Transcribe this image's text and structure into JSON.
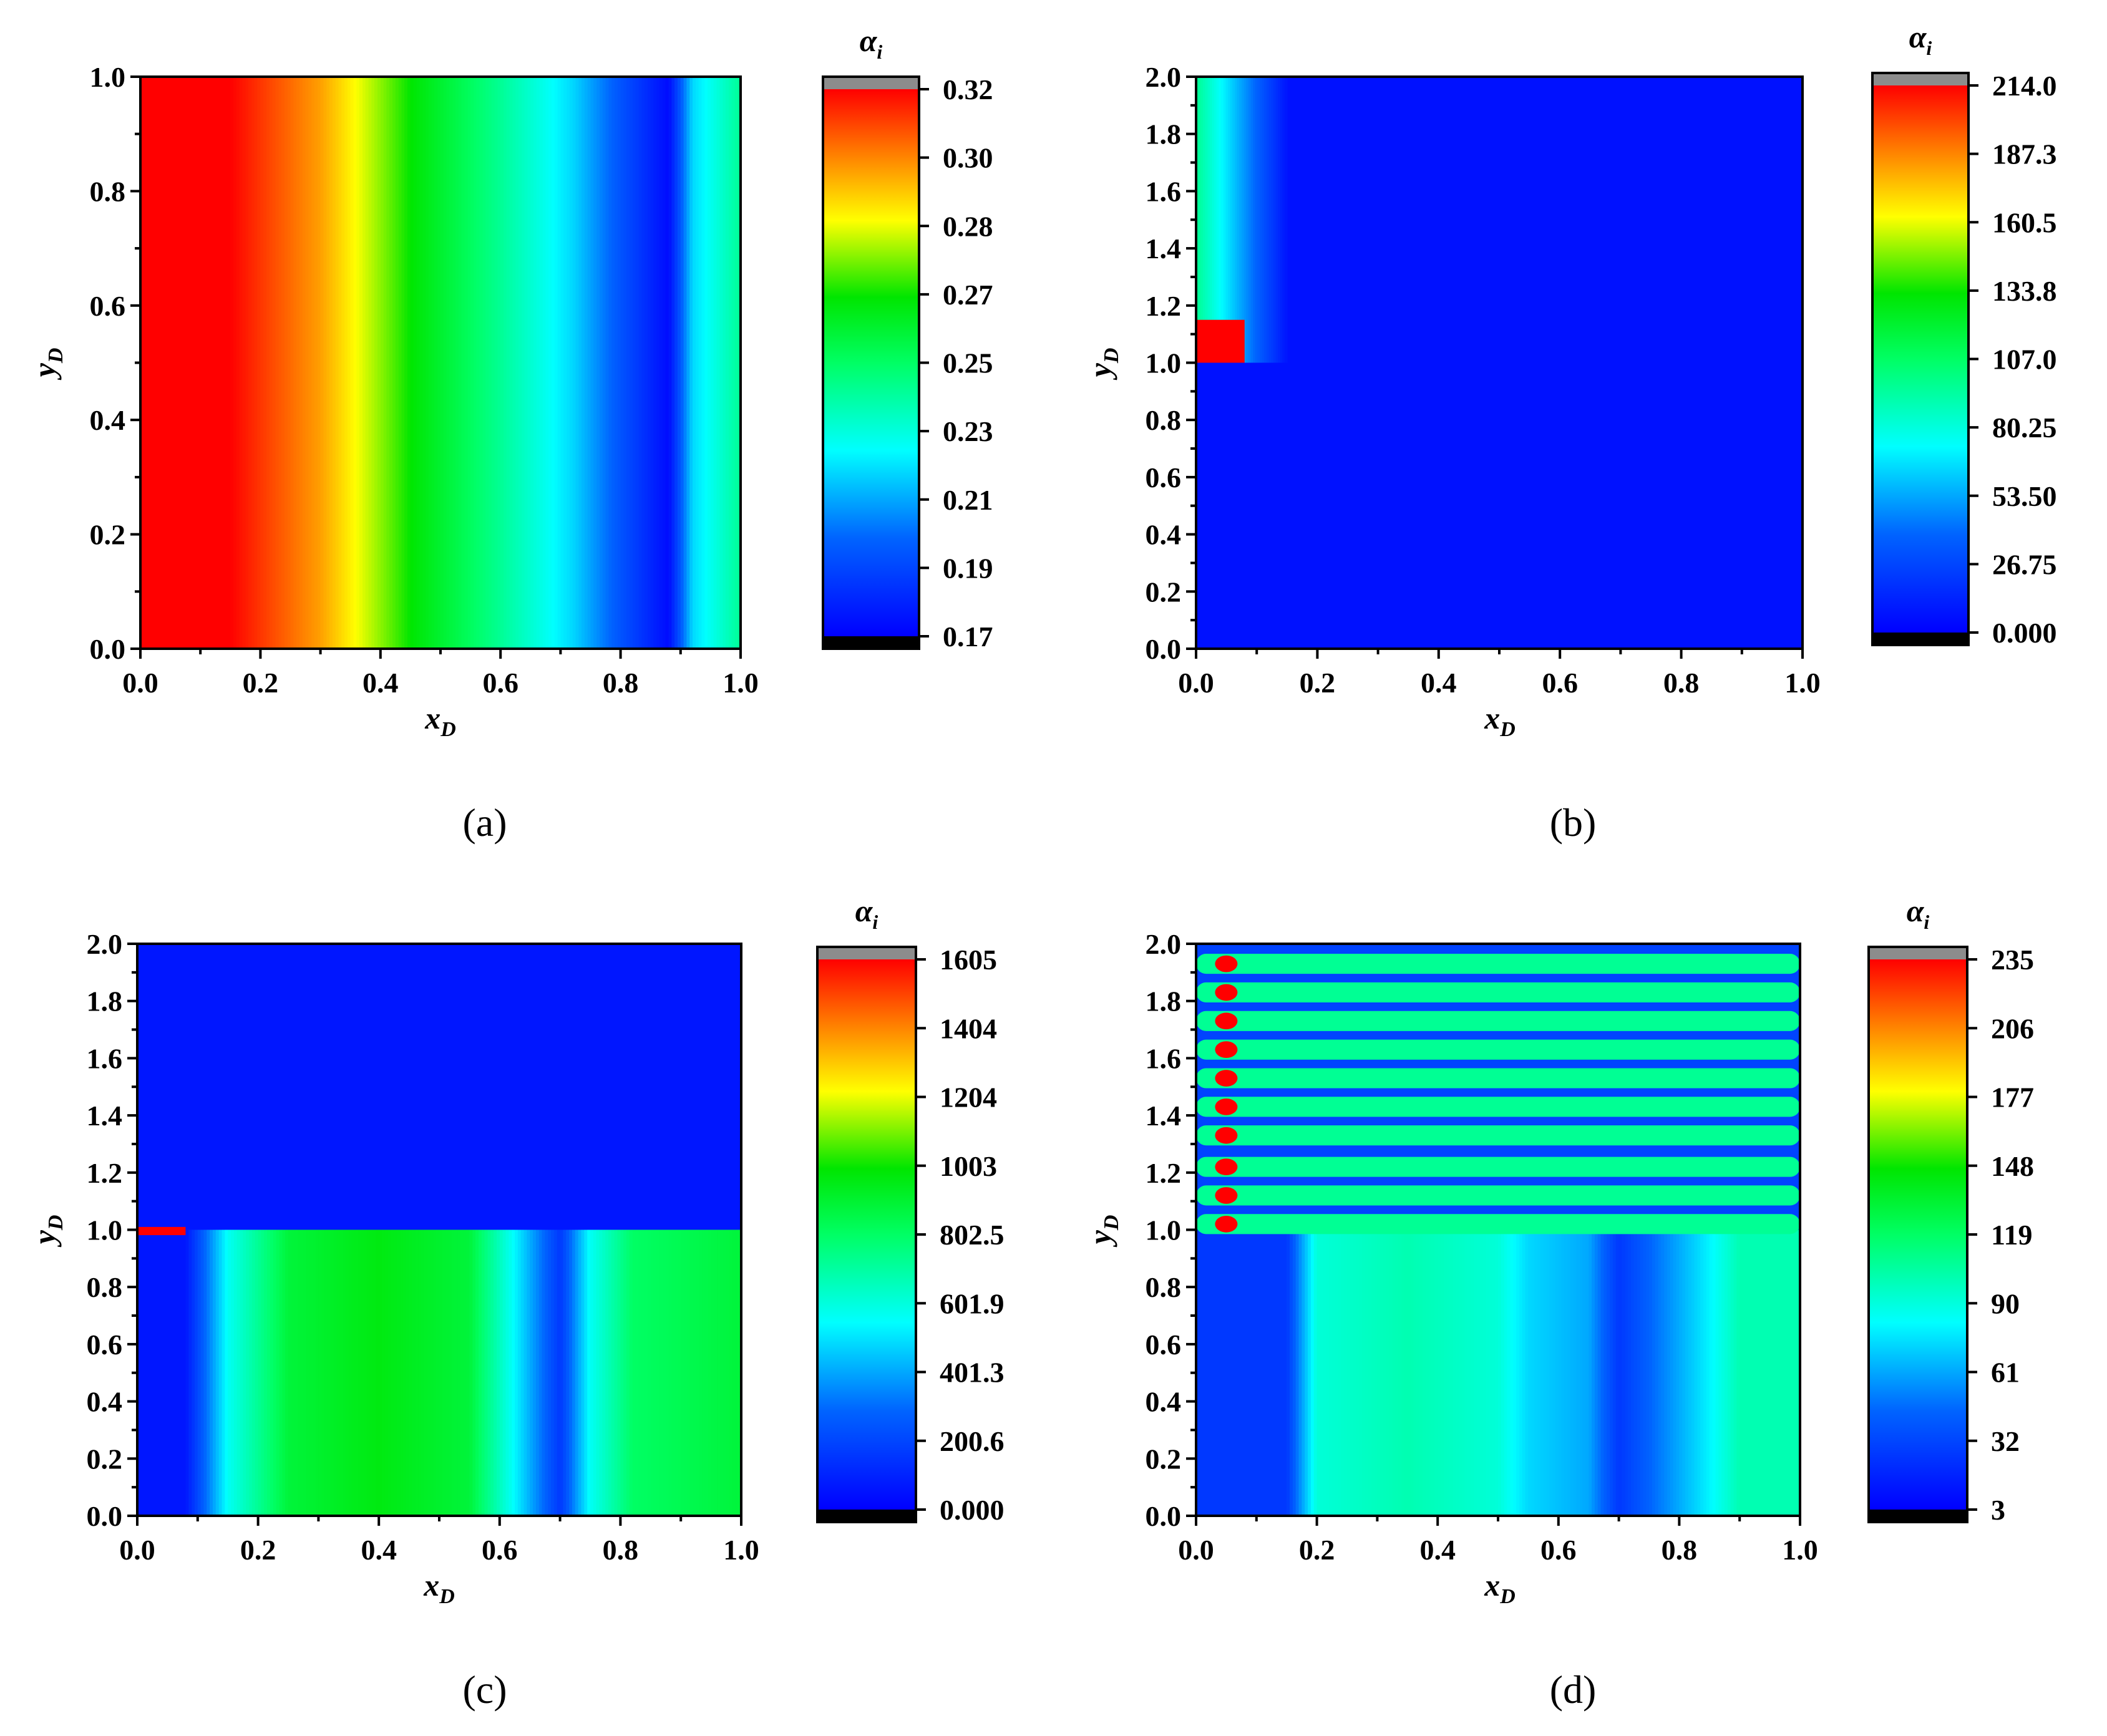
{
  "chart_data": [
    {
      "id": "a",
      "type": "heatmap",
      "caption": "(a)",
      "xlabel": {
        "base": "x",
        "sub": "D"
      },
      "ylabel": {
        "base": "y",
        "sub": "D"
      },
      "xlim": [
        0.0,
        1.0
      ],
      "ylim": [
        0.0,
        1.0
      ],
      "xticks": [
        "0.0",
        "0.2",
        "0.4",
        "0.6",
        "0.8",
        "1.0"
      ],
      "yticks": [
        "0.0",
        "0.2",
        "0.4",
        "0.6",
        "0.8",
        "1.0"
      ],
      "colorbar": {
        "label": {
          "base": "α",
          "sub": "i"
        },
        "ticks": [
          "0.32",
          "0.30",
          "0.28",
          "0.27",
          "0.25",
          "0.23",
          "0.21",
          "0.19",
          "0.17"
        ],
        "range": [
          0.17,
          0.32
        ]
      },
      "field_profile": {
        "axis": "x",
        "x": [
          0.0,
          0.15,
          0.3,
          0.45,
          0.6,
          0.72,
          0.8,
          0.88,
          0.92,
          1.0
        ],
        "level": [
          1.0,
          1.0,
          0.85,
          0.62,
          0.45,
          0.3,
          0.15,
          0.02,
          0.3,
          0.45
        ]
      }
    },
    {
      "id": "b",
      "type": "heatmap",
      "caption": "(b)",
      "xlabel": {
        "base": "x",
        "sub": "D"
      },
      "ylabel": {
        "base": "y",
        "sub": "D"
      },
      "xlim": [
        0.0,
        1.0
      ],
      "ylim": [
        0.0,
        2.0
      ],
      "xticks": [
        "0.0",
        "0.2",
        "0.4",
        "0.6",
        "0.8",
        "1.0"
      ],
      "yticks": [
        "0.0",
        "0.2",
        "0.4",
        "0.6",
        "0.8",
        "1.0",
        "1.2",
        "1.4",
        "1.6",
        "1.8",
        "2.0"
      ],
      "colorbar": {
        "label": {
          "base": "α",
          "sub": "i"
        },
        "ticks": [
          "214.0",
          "187.3",
          "160.5",
          "133.8",
          "107.0",
          "80.25",
          "53.50",
          "26.75",
          "0.000"
        ],
        "range": [
          0.0,
          214.0
        ]
      },
      "regions": [
        {
          "name": "fracture-tip-peak",
          "x_range": [
            0.0,
            0.08
          ],
          "y_range": [
            1.0,
            1.15
          ],
          "level": 1.0
        },
        {
          "name": "fracture-tip-plume",
          "x_range": [
            0.0,
            0.15
          ],
          "y_range": [
            1.0,
            2.0
          ],
          "level": 0.45
        },
        {
          "name": "matrix",
          "x_range": [
            0.0,
            1.0
          ],
          "y_range": [
            0.0,
            2.0
          ],
          "level": 0.03
        }
      ]
    },
    {
      "id": "c",
      "type": "heatmap",
      "caption": "(c)",
      "xlabel": {
        "base": "x",
        "sub": "D"
      },
      "ylabel": {
        "base": "y",
        "sub": "D"
      },
      "xlim": [
        0.0,
        1.0
      ],
      "ylim": [
        0.0,
        2.0
      ],
      "xticks": [
        "0.0",
        "0.2",
        "0.4",
        "0.6",
        "0.8",
        "1.0"
      ],
      "yticks": [
        "0.0",
        "0.2",
        "0.4",
        "0.6",
        "0.8",
        "1.0",
        "1.2",
        "1.4",
        "1.6",
        "1.8",
        "2.0"
      ],
      "colorbar": {
        "label": {
          "base": "α",
          "sub": "i"
        },
        "ticks": [
          "1605",
          "1404",
          "1204",
          "1003",
          "802.5",
          "601.9",
          "401.3",
          "200.6",
          "0.000"
        ],
        "range": [
          0.0,
          1605
        ]
      },
      "field_profile": {
        "axis": "x",
        "applies_to_y": [
          0.0,
          1.0
        ],
        "x": [
          0.0,
          0.08,
          0.15,
          0.25,
          0.4,
          0.55,
          0.62,
          0.7,
          0.75,
          0.82,
          1.0
        ],
        "level": [
          0.04,
          0.04,
          0.35,
          0.55,
          0.6,
          0.55,
          0.35,
          0.1,
          0.35,
          0.5,
          0.55
        ]
      },
      "regions": [
        {
          "name": "fracture-tip-peak",
          "x_range": [
            0.0,
            0.08
          ],
          "y_range": [
            0.99,
            1.01
          ],
          "level": 1.0
        },
        {
          "name": "upper-matrix",
          "x_range": [
            0.0,
            1.0
          ],
          "y_range": [
            1.0,
            2.0
          ],
          "level": 0.04
        }
      ]
    },
    {
      "id": "d",
      "type": "heatmap",
      "caption": "(d)",
      "xlabel": {
        "base": "x",
        "sub": "D"
      },
      "ylabel": {
        "base": "y",
        "sub": "D"
      },
      "xlim": [
        0.0,
        1.0
      ],
      "ylim": [
        0.0,
        2.0
      ],
      "xticks": [
        "0.0",
        "0.2",
        "0.4",
        "0.6",
        "0.8",
        "1.0"
      ],
      "yticks": [
        "0.0",
        "0.2",
        "0.4",
        "0.6",
        "0.8",
        "1.0",
        "1.2",
        "1.4",
        "1.6",
        "1.8",
        "2.0"
      ],
      "colorbar": {
        "label": {
          "base": "α",
          "sub": "i"
        },
        "ticks": [
          "235",
          "206",
          "177",
          "148",
          "119",
          "90",
          "61",
          "32",
          "3"
        ],
        "range": [
          3,
          235
        ]
      },
      "field_profile": {
        "axis": "x",
        "applies_to_y": [
          0.0,
          1.0
        ],
        "x": [
          0.0,
          0.15,
          0.2,
          0.35,
          0.5,
          0.55,
          0.65,
          0.7,
          0.85,
          0.9,
          1.0
        ],
        "level": [
          0.1,
          0.1,
          0.38,
          0.42,
          0.38,
          0.3,
          0.25,
          0.1,
          0.33,
          0.42,
          0.42
        ]
      },
      "bands": {
        "y_centers": [
          1.02,
          1.12,
          1.22,
          1.33,
          1.43,
          1.53,
          1.63,
          1.73,
          1.83,
          1.93
        ],
        "level": 0.45,
        "separator_level": 0.12,
        "peak_x": 0.05,
        "peak_level": 1.0
      }
    }
  ]
}
